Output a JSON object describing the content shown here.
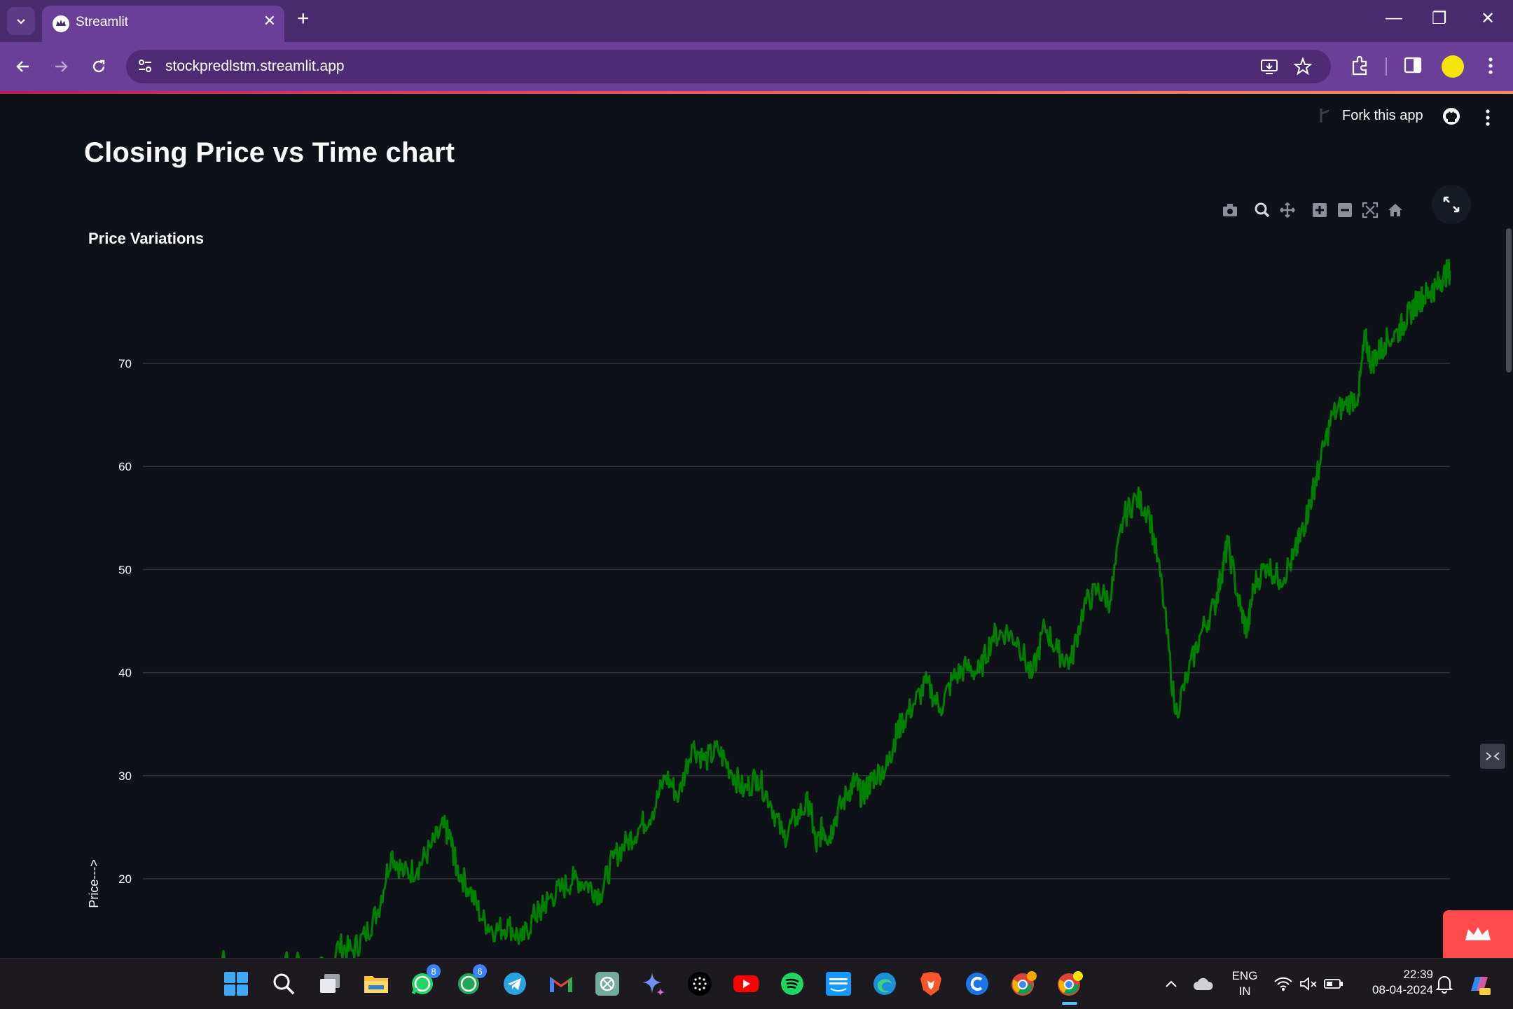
{
  "browser": {
    "tab_title": "Streamlit",
    "url": "stockpredlstm.streamlit.app"
  },
  "app": {
    "fork_label": "Fork this app",
    "page_title": "Closing Price vs Time chart"
  },
  "chart_data": {
    "type": "line",
    "title": "Price Variations",
    "xlabel": "",
    "ylabel": "Price--->",
    "yticks": [
      20,
      30,
      40,
      50,
      60,
      70
    ],
    "ylim": [
      11,
      77.5
    ],
    "grid": true,
    "legend": "none",
    "series": [
      {
        "color": "#008000",
        "x": [
          0.0,
          0.02,
          0.04,
          0.06,
          0.08,
          0.1,
          0.12,
          0.14,
          0.15,
          0.16,
          0.17,
          0.18,
          0.19,
          0.2,
          0.21,
          0.22,
          0.23,
          0.235,
          0.24,
          0.25,
          0.26,
          0.27,
          0.28,
          0.29,
          0.3,
          0.305,
          0.31,
          0.32,
          0.33,
          0.34,
          0.35,
          0.36,
          0.37,
          0.38,
          0.39,
          0.4,
          0.41,
          0.42,
          0.43,
          0.44,
          0.45,
          0.46,
          0.47,
          0.48,
          0.49,
          0.5,
          0.51,
          0.515,
          0.52,
          0.525,
          0.53,
          0.54,
          0.545,
          0.55,
          0.555,
          0.56,
          0.57,
          0.575,
          0.58,
          0.59,
          0.6,
          0.61,
          0.62,
          0.63,
          0.64,
          0.65,
          0.66,
          0.67,
          0.68,
          0.69,
          0.7,
          0.71,
          0.72,
          0.73,
          0.74,
          0.75,
          0.76,
          0.77,
          0.78,
          0.79,
          0.8,
          0.81,
          0.82,
          0.825,
          0.83,
          0.84,
          0.845,
          0.85,
          0.86,
          0.87,
          0.88,
          0.885,
          0.89,
          0.895,
          0.9,
          0.91,
          0.92,
          0.93,
          0.935,
          0.94,
          0.945,
          0.95,
          0.96,
          0.965,
          0.97,
          0.975,
          0.98,
          0.985,
          0.99,
          0.995,
          1.0
        ],
        "y": [
          9.0,
          9.6,
          10.5,
          11.8,
          10.8,
          11.4,
          12.0,
          11.0,
          13.5,
          13.0,
          14.5,
          17.0,
          22.5,
          20.5,
          21.0,
          23.0,
          25.0,
          24.0,
          21.0,
          19.0,
          16.0,
          15.0,
          15.5,
          14.0,
          16.5,
          17.0,
          18.0,
          19.0,
          20.0,
          19.5,
          18.5,
          22.0,
          23.5,
          25.0,
          26.5,
          30.0,
          28.0,
          33.0,
          31.5,
          32.5,
          30.5,
          28.5,
          30.0,
          27.5,
          24.0,
          26.0,
          27.5,
          23.0,
          25.0,
          24.0,
          26.0,
          28.5,
          29.5,
          28.0,
          29.0,
          30.0,
          31.0,
          33.5,
          35.0,
          37.0,
          39.0,
          36.5,
          39.5,
          40.5,
          40.0,
          43.5,
          44.0,
          43.0,
          39.5,
          44.5,
          42.0,
          41.0,
          46.5,
          48.0,
          47.0,
          55.0,
          57.0,
          55.5,
          48.0,
          36.0,
          40.0,
          44.0,
          46.5,
          49.5,
          52.5,
          46.0,
          44.0,
          48.5,
          50.5,
          49.0,
          51.0,
          53.0,
          55.0,
          57.5,
          60.0,
          65.0,
          66.0,
          67.0,
          72.5,
          70.0,
          71.0,
          72.0,
          73.0,
          74.0,
          75.0,
          76.0,
          76.5,
          77.0,
          77.5,
          78.5,
          79.0
        ]
      }
    ]
  },
  "taskbar": {
    "whatsapp_badge": "8",
    "whatsapp2_badge": "6",
    "lang_line1": "ENG",
    "lang_line2": "IN",
    "time": "22:39",
    "date": "08-04-2024"
  },
  "colors": {
    "tab_bar": "#4a2a6e",
    "toolbar": "#6a3f98",
    "page_bg": "#0e1117",
    "line": "#008000",
    "streamlit_red": "#ff4b4b"
  }
}
